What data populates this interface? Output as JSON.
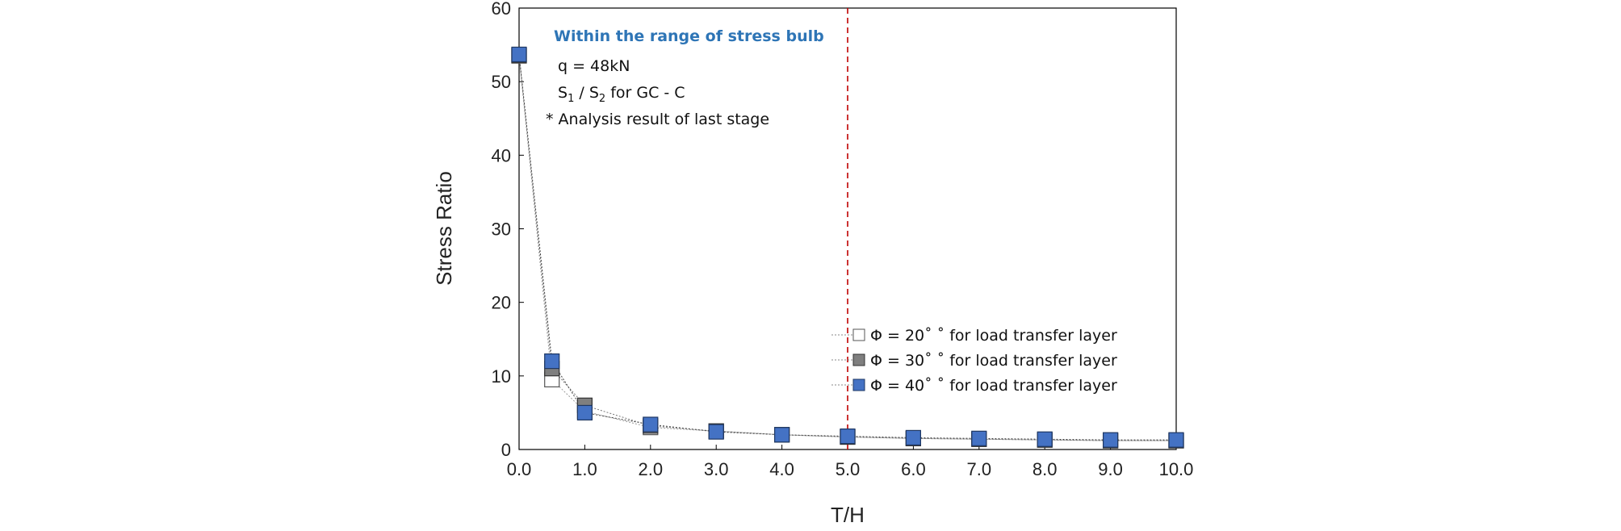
{
  "chart_data": {
    "type": "line",
    "xlabel": "T/H",
    "ylabel": "Stress  Ratio",
    "xlim": [
      0,
      10
    ],
    "ylim": [
      0,
      60
    ],
    "x_ticks": [
      "0.0",
      "1.0",
      "2.0",
      "3.0",
      "4.0",
      "5.0",
      "6.0",
      "7.0",
      "8.0",
      "9.0",
      "10.0"
    ],
    "y_ticks": [
      "0",
      "10",
      "20",
      "30",
      "40",
      "50",
      "60"
    ],
    "grid": false,
    "legend_position": "right-middle",
    "reference_line": {
      "x": 5.0,
      "style": "dashed",
      "color": "#C00000"
    },
    "x": [
      0.0,
      0.5,
      1.0,
      2.0,
      3.0,
      4.0,
      5.0,
      6.0,
      7.0,
      8.0,
      9.0,
      10.0
    ],
    "series": [
      {
        "name": "Φ = 20˚ ˚   for load transfer layer",
        "marker": "square-open",
        "color": "#ffffff",
        "values": [
          53.5,
          9.5,
          5.2,
          3.0,
          2.5,
          2.0,
          1.7,
          1.5,
          1.4,
          1.3,
          1.2,
          1.2
        ]
      },
      {
        "name": "Φ = 30˚ ˚   for load transfer layer",
        "marker": "square-filled",
        "color": "#7F7F7F",
        "values": [
          53.6,
          11.0,
          6.0,
          3.2,
          2.5,
          2.0,
          1.7,
          1.5,
          1.4,
          1.3,
          1.2,
          1.2
        ]
      },
      {
        "name": "Φ = 40˚ ˚   for load transfer layer",
        "marker": "square-filled",
        "color": "#4472C4",
        "values": [
          53.7,
          12.0,
          5.0,
          3.4,
          2.4,
          2.0,
          1.8,
          1.6,
          1.5,
          1.4,
          1.3,
          1.3
        ]
      }
    ],
    "annotations": {
      "title": "Within the range of stress bulb",
      "load": "q = 48kN",
      "ratio_prefix": "S",
      "ratio_sub1": "1",
      "ratio_mid": " / S",
      "ratio_sub2": "2",
      "ratio_suffix": "  for  GC - C",
      "note": "* Analysis result of  last stage"
    }
  }
}
